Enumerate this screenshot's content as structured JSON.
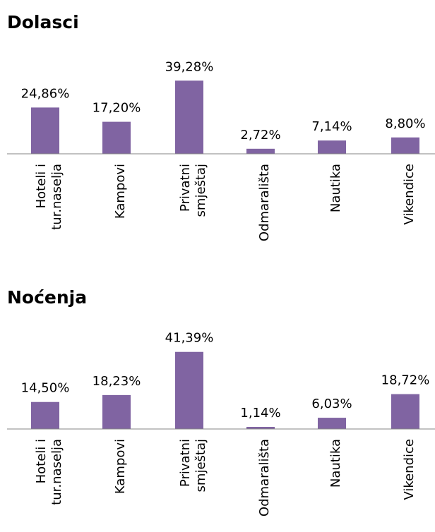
{
  "chart_data": [
    {
      "type": "bar",
      "title": "Dolasci",
      "categories": [
        "Hoteli i\ntur.naselja",
        "Kampovi",
        "Privatni\nsmještaj",
        "Odmarališta",
        "Nautika",
        "Vikendice"
      ],
      "values": [
        24.86,
        17.2,
        39.28,
        2.72,
        7.14,
        8.8
      ],
      "value_labels": [
        "24,86%",
        "17,20%",
        "39,28%",
        "2,72%",
        "7,14%",
        "8,80%"
      ],
      "color": "#8064a2"
    },
    {
      "type": "bar",
      "title": "Noćenja",
      "categories": [
        "Hoteli i\ntur.naselja",
        "Kampovi",
        "Privatni\nsmještaj",
        "Odmarališta",
        "Nautika",
        "Vikendice"
      ],
      "values": [
        14.5,
        18.23,
        41.39,
        1.14,
        6.03,
        18.72
      ],
      "value_labels": [
        "14,50%",
        "18,23%",
        "41,39%",
        "1,14%",
        "6,03%",
        "18,72%"
      ],
      "color": "#8064a2"
    }
  ]
}
